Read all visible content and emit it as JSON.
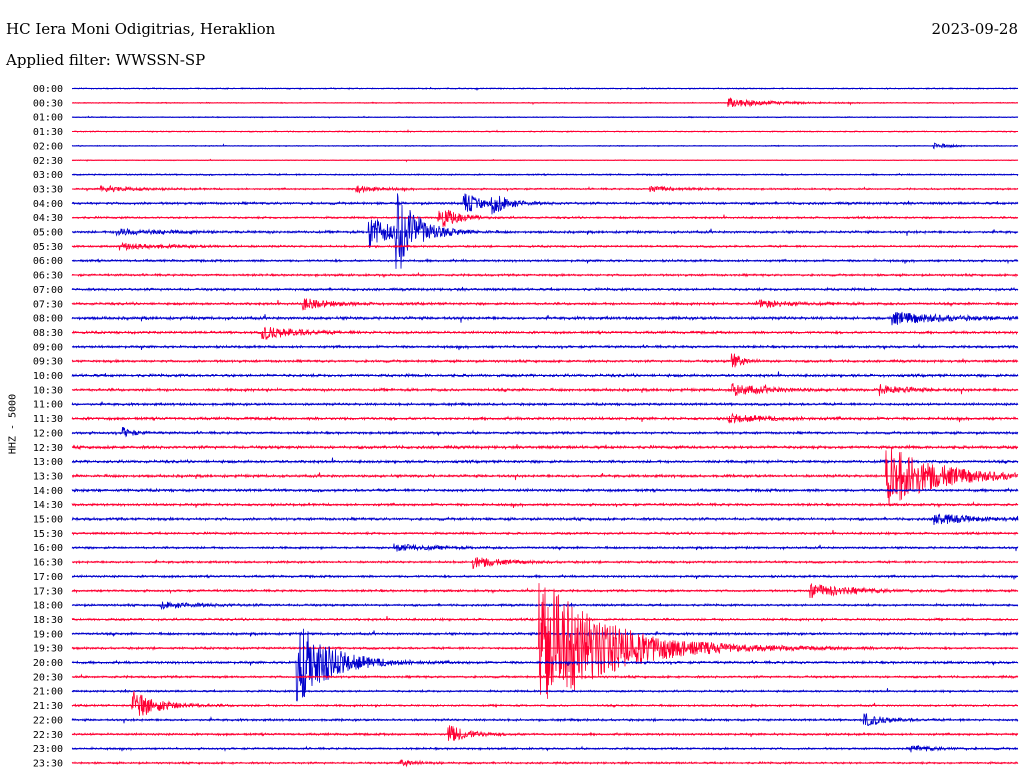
{
  "header": {
    "station": "HC Iera Moni Odigitrias, Heraklion",
    "filter": "Applied filter: WWSSN-SP",
    "date": "2023-09-28"
  },
  "chart_data": {
    "type": "line",
    "title": "HC Iera Moni Odigitrias, Heraklion",
    "subtitle": "Applied filter: WWSSN-SP",
    "ylabel": "HHZ - 5000",
    "rows": [
      "00:00",
      "00:30",
      "01:00",
      "01:30",
      "02:00",
      "02:30",
      "03:00",
      "03:30",
      "04:00",
      "04:30",
      "05:00",
      "05:30",
      "06:00",
      "06:30",
      "07:00",
      "07:30",
      "08:00",
      "08:30",
      "09:00",
      "09:30",
      "10:00",
      "10:30",
      "11:00",
      "11:30",
      "12:00",
      "12:30",
      "13:00",
      "13:30",
      "14:00",
      "14:30",
      "15:00",
      "15:30",
      "16:00",
      "16:30",
      "17:00",
      "17:30",
      "18:00",
      "18:30",
      "19:00",
      "19:30",
      "20:00",
      "20:30",
      "21:00",
      "21:30",
      "22:00",
      "22:30",
      "23:00",
      "23:30"
    ],
    "row_colors": [
      "#0000cc",
      "#ff0033"
    ],
    "row_minutes": 30,
    "noise_levels": [
      0.5,
      0.4,
      0.4,
      0.5,
      0.4,
      0.3,
      0.6,
      0.7,
      1.0,
      0.8,
      1.0,
      0.8,
      0.9,
      0.9,
      1.0,
      1.0,
      1.2,
      1.0,
      1.0,
      1.0,
      1.1,
      1.1,
      1.0,
      1.1,
      1.0,
      1.2,
      1.1,
      1.1,
      1.1,
      1.0,
      1.1,
      0.9,
      0.9,
      0.9,
      0.9,
      0.9,
      0.9,
      0.9,
      1.0,
      0.9,
      1.0,
      0.9,
      0.8,
      0.8,
      0.9,
      0.9,
      0.8,
      0.8
    ],
    "events": [
      {
        "row": 1,
        "minute": 20.8,
        "amp": 5,
        "dur": 1.2
      },
      {
        "row": 4,
        "minute": 27.3,
        "amp": 3,
        "dur": 0.5
      },
      {
        "row": 7,
        "minute": 0.9,
        "amp": 3,
        "dur": 1.0
      },
      {
        "row": 7,
        "minute": 9.0,
        "amp": 4,
        "dur": 0.6
      },
      {
        "row": 7,
        "minute": 18.3,
        "amp": 3,
        "dur": 0.8
      },
      {
        "row": 8,
        "minute": 12.4,
        "amp": 12,
        "dur": 0.5
      },
      {
        "row": 8,
        "minute": 13.3,
        "amp": 10,
        "dur": 0.5
      },
      {
        "row": 9,
        "minute": 11.6,
        "amp": 14,
        "dur": 0.5
      },
      {
        "row": 10,
        "minute": 9.4,
        "amp": 18,
        "dur": 0.7
      },
      {
        "row": 10,
        "minute": 10.2,
        "amp": 48,
        "dur": 0.6
      },
      {
        "row": 10,
        "minute": 1.4,
        "amp": 3,
        "dur": 1.5
      },
      {
        "row": 11,
        "minute": 1.5,
        "amp": 3,
        "dur": 1.5
      },
      {
        "row": 15,
        "minute": 7.3,
        "amp": 6,
        "dur": 0.8
      },
      {
        "row": 15,
        "minute": 21.7,
        "amp": 4,
        "dur": 1.0
      },
      {
        "row": 16,
        "minute": 26.0,
        "amp": 6,
        "dur": 1.5
      },
      {
        "row": 17,
        "minute": 6.0,
        "amp": 7,
        "dur": 1.0
      },
      {
        "row": 19,
        "minute": 20.9,
        "amp": 10,
        "dur": 0.3
      },
      {
        "row": 21,
        "minute": 20.9,
        "amp": 6,
        "dur": 1.0
      },
      {
        "row": 21,
        "minute": 25.6,
        "amp": 5,
        "dur": 0.8
      },
      {
        "row": 23,
        "minute": 20.8,
        "amp": 4,
        "dur": 1.2
      },
      {
        "row": 24,
        "minute": 1.6,
        "amp": 6,
        "dur": 0.3
      },
      {
        "row": 27,
        "minute": 25.8,
        "amp": 33,
        "dur": 1.5
      },
      {
        "row": 30,
        "minute": 27.3,
        "amp": 6,
        "dur": 1.0
      },
      {
        "row": 32,
        "minute": 10.2,
        "amp": 4,
        "dur": 1.0
      },
      {
        "row": 33,
        "minute": 12.7,
        "amp": 6,
        "dur": 0.8
      },
      {
        "row": 35,
        "minute": 23.4,
        "amp": 7,
        "dur": 1.2
      },
      {
        "row": 36,
        "minute": 2.8,
        "amp": 3,
        "dur": 1.2
      },
      {
        "row": 40,
        "minute": 7.1,
        "amp": 45,
        "dur": 1.0
      },
      {
        "row": 39,
        "minute": 14.8,
        "amp": 75,
        "dur": 2.0
      },
      {
        "row": 43,
        "minute": 1.9,
        "amp": 15,
        "dur": 0.8
      },
      {
        "row": 44,
        "minute": 25.1,
        "amp": 7,
        "dur": 0.6
      },
      {
        "row": 45,
        "minute": 11.9,
        "amp": 10,
        "dur": 0.6
      },
      {
        "row": 46,
        "minute": 26.6,
        "amp": 3,
        "dur": 0.8
      },
      {
        "row": 47,
        "minute": 10.4,
        "amp": 3,
        "dur": 0.6
      }
    ]
  }
}
